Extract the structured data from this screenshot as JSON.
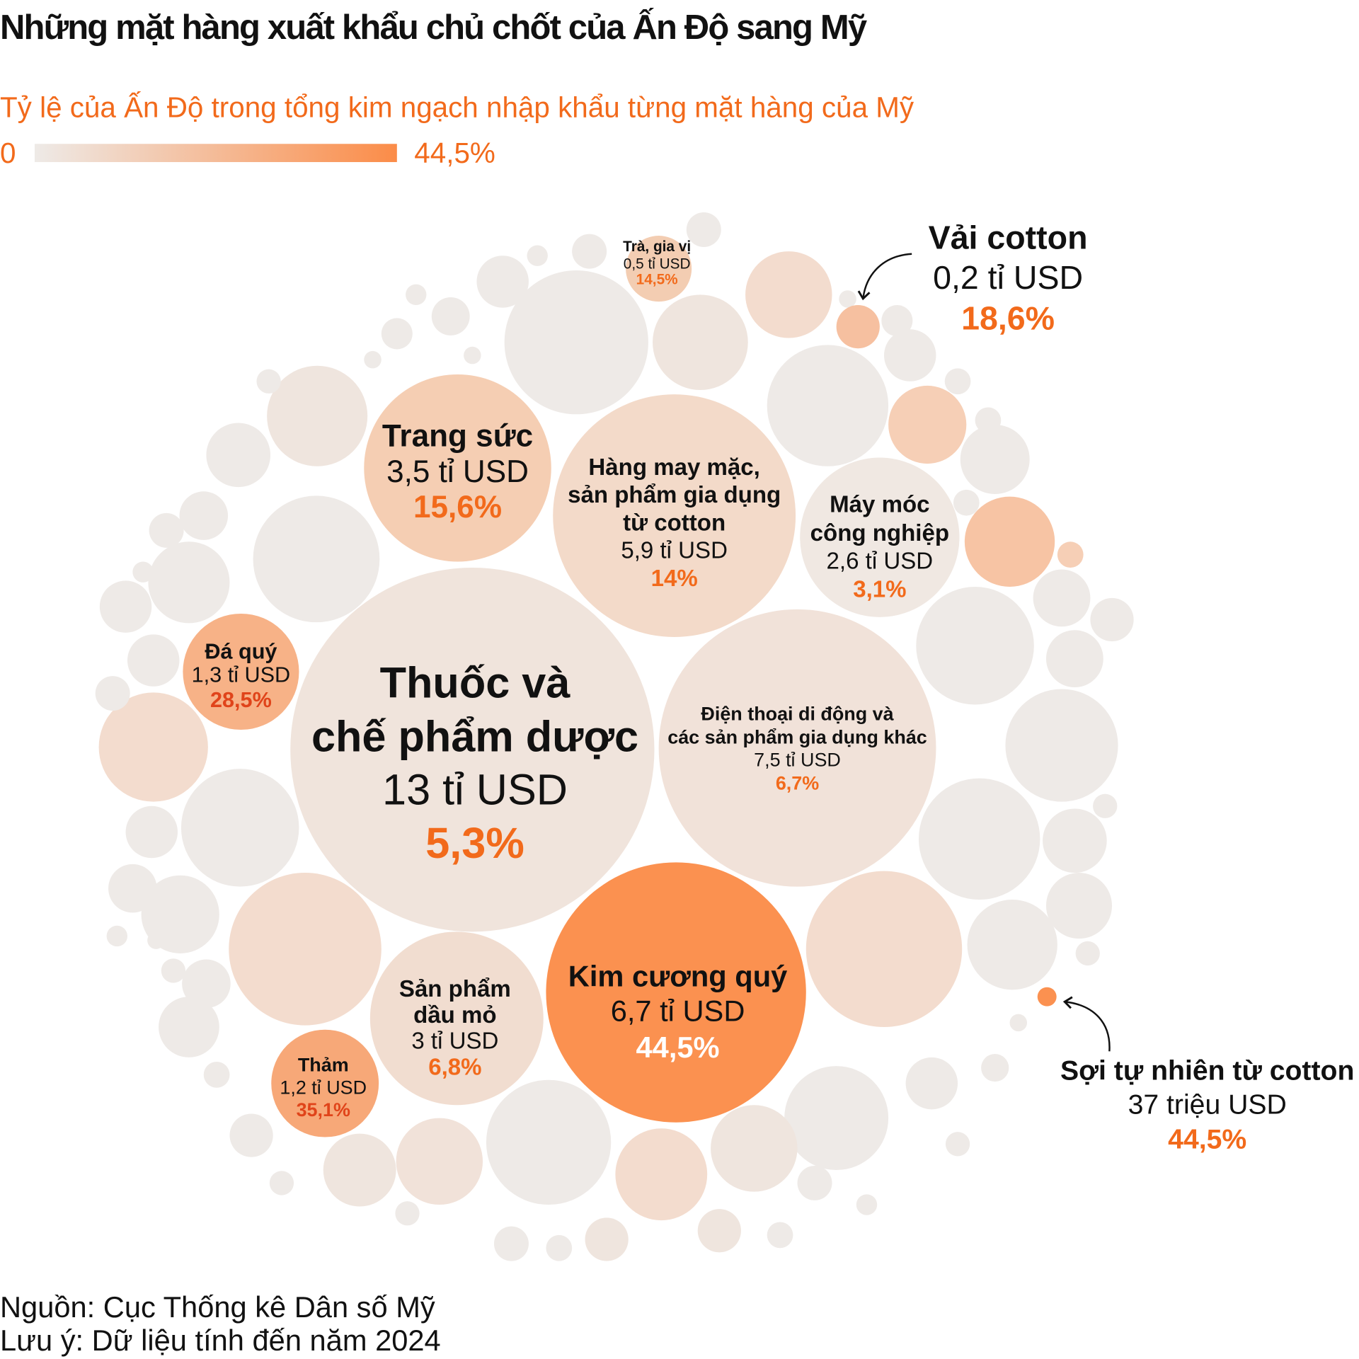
{
  "title": "Những mặt hàng xuất khẩu chủ chốt của Ấn Độ sang Mỹ",
  "subtitle": "Tỷ lệ của Ấn Độ trong tổng kim ngạch nhập khẩu từng mặt hàng của Mỹ",
  "legend": {
    "min_label": "0",
    "max_label": "44,5%",
    "color_low": "#eeeae7",
    "color_high": "#fb8c48"
  },
  "footer": {
    "source": "Nguồn: Cục Thống kê Dân số Mỹ",
    "note": "Lưu ý: Dữ liệu tính đến năm 2024"
  },
  "colors": {
    "accent": "#f26a1b",
    "red_text": "#e0441a",
    "text": "#111111"
  },
  "chart_data": {
    "type": "bubble",
    "size_measure": "US import value from India",
    "color_measure": "India's share of US imports",
    "color_range": [
      0,
      44.5
    ],
    "items": [
      {
        "name_lines": [
          "Thuốc và",
          "chế phẩm dược"
        ],
        "value": "13 tỉ USD",
        "share": "5,3%",
        "fill": "#f0e4dc"
      },
      {
        "name_lines": [
          "Kim cương quý"
        ],
        "value": "6,7 tỉ USD",
        "share": "44,5%",
        "fill": "#fb9150"
      },
      {
        "name_lines": [
          "Hàng may mặc,",
          "sản phẩm gia dụng",
          "từ cotton"
        ],
        "value": "5,9 tỉ USD",
        "share": "14%",
        "fill": "#f3dac9"
      },
      {
        "name_lines": [
          "Điện thoại di động và",
          "các sản phẩm gia dụng khác"
        ],
        "value": "7,5 tỉ USD",
        "share": "6,7%",
        "fill": "#f1e2d9"
      },
      {
        "name_lines": [
          "Trang sức"
        ],
        "value": "3,5 tỉ USD",
        "share": "15,6%",
        "fill": "#f5ceb3"
      },
      {
        "name_lines": [
          "Máy móc",
          "công nghiệp"
        ],
        "value": "2,6 tỉ USD",
        "share": "3,1%",
        "fill": "#f0e8e2"
      },
      {
        "name_lines": [
          "Đá quý"
        ],
        "value": "1,3 tỉ USD",
        "share": "28,5%",
        "fill": "#f7b287"
      },
      {
        "name_lines": [
          "Sản phẩm",
          "dầu mỏ"
        ],
        "value": "3 tỉ USD",
        "share": "6,8%",
        "fill": "#f1ddd0"
      },
      {
        "name_lines": [
          "Thảm"
        ],
        "value": "1,2 tỉ USD",
        "share": "35,1%",
        "fill": "#f7a878"
      },
      {
        "name_lines": [
          "Trà, gia vị"
        ],
        "value": "0,5 tỉ USD",
        "share": "14,5%",
        "fill": "#f3cdb2"
      },
      {
        "name_lines": [
          "Vải cotton"
        ],
        "value": "0,2 tỉ USD",
        "share": "18,6%",
        "fill": "#f6c0a0"
      },
      {
        "name_lines": [
          "Sợi tự nhiên từ cotton"
        ],
        "value": "37 triệu USD",
        "share": "44,5%",
        "fill": "#fb9150"
      }
    ]
  }
}
